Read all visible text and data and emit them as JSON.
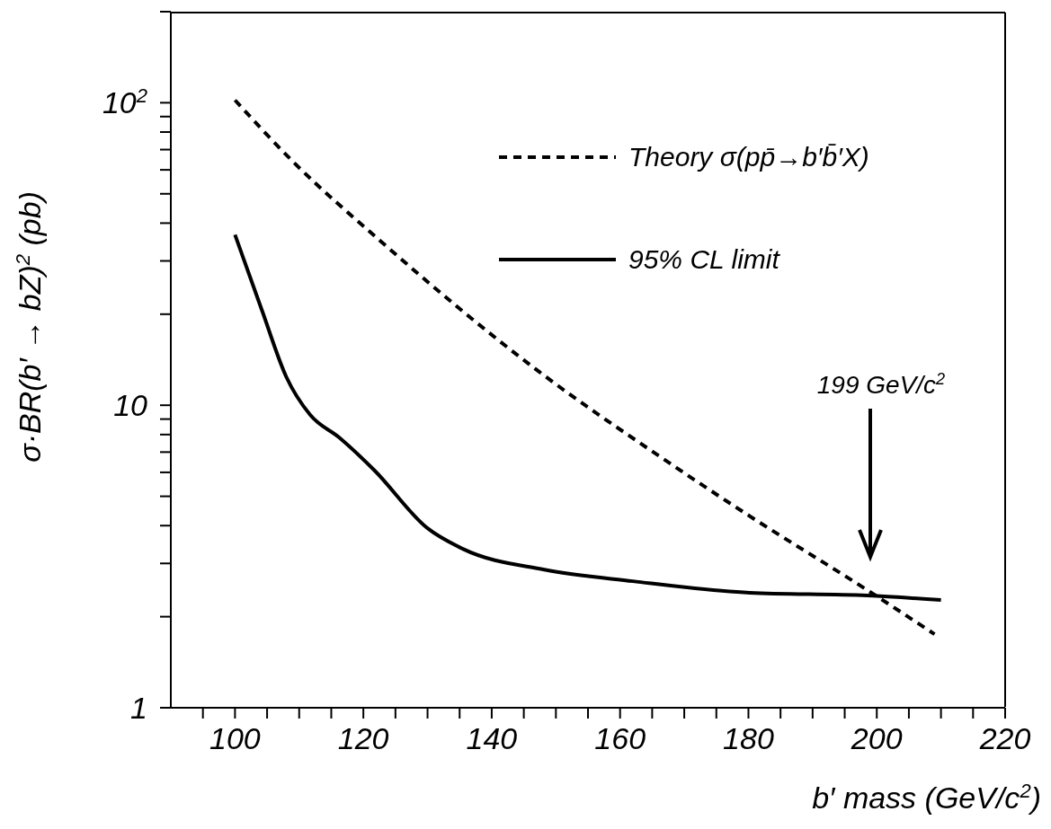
{
  "chart_data": {
    "type": "line",
    "xlabel": "b′ mass (GeV/c$^{2}$)",
    "ylabel": "σ·BR(b′ → bZ)$^{2}$  (pb)",
    "log": "y",
    "xlim": [
      90,
      220
    ],
    "ylim": [
      1,
      200
    ],
    "xticks": [
      {
        "value": 95,
        "label": null
      },
      100,
      {
        "value": 105,
        "label": null
      },
      {
        "value": 110,
        "label": null
      },
      {
        "value": 115,
        "label": null
      },
      120,
      {
        "value": 125,
        "label": null
      },
      {
        "value": 130,
        "label": null
      },
      {
        "value": 135,
        "label": null
      },
      140,
      {
        "value": 145,
        "label": null
      },
      {
        "value": 150,
        "label": null
      },
      {
        "value": 155,
        "label": null
      },
      160,
      {
        "value": 165,
        "label": null
      },
      {
        "value": 170,
        "label": null
      },
      {
        "value": 175,
        "label": null
      },
      180,
      {
        "value": 185,
        "label": null
      },
      {
        "value": 190,
        "label": null
      },
      {
        "value": 195,
        "label": null
      },
      200,
      {
        "value": 205,
        "label": null
      },
      {
        "value": 210,
        "label": null
      },
      {
        "value": 215,
        "label": null
      },
      220
    ],
    "yticks": [
      1,
      {
        "value": 2,
        "label": null
      },
      {
        "value": 3,
        "label": null
      },
      {
        "value": 4,
        "label": null
      },
      {
        "value": 5,
        "label": null
      },
      {
        "value": 6,
        "label": null
      },
      {
        "value": 7,
        "label": null
      },
      {
        "value": 8,
        "label": null
      },
      {
        "value": 9,
        "label": null
      },
      10,
      {
        "value": 20,
        "label": null
      },
      {
        "value": 30,
        "label": null
      },
      {
        "value": 40,
        "label": null
      },
      {
        "value": 50,
        "label": null
      },
      {
        "value": 60,
        "label": null
      },
      {
        "value": 70,
        "label": null
      },
      {
        "value": 80,
        "label": null
      },
      {
        "value": 90,
        "label": null
      },
      {
        "value": 100,
        "label": "10$^{2}$"
      },
      {
        "value": 200,
        "label": null
      }
    ],
    "legend": "top right",
    "grid": false,
    "series": [
      {
        "name": "Theory σ(pp̄→b′b̄′X)",
        "color": "#000000",
        "line_style": "dashed",
        "x": [
          100,
          109,
          122.6,
          147.4,
          166.5,
          180.2,
          198.5,
          209
        ],
        "values": [
          102,
          64,
          35,
          12.9,
          6.7,
          4.3,
          2.45,
          1.75
        ]
      },
      {
        "name": "95% CL limit",
        "color": "#000000",
        "line_style": "solid",
        "x": [
          100,
          104.2,
          108,
          111.7,
          116.3,
          121.7,
          130,
          135.5,
          148.2,
          162,
          180.2,
          198.5,
          210
        ],
        "values": [
          36.6,
          20.6,
          12.4,
          9.3,
          7.8,
          6.1,
          3.92,
          3.35,
          2.86,
          2.62,
          2.4,
          2.35,
          2.27
        ]
      }
    ],
    "annotations": [
      "199 GeV/c$^{2}$"
    ]
  }
}
